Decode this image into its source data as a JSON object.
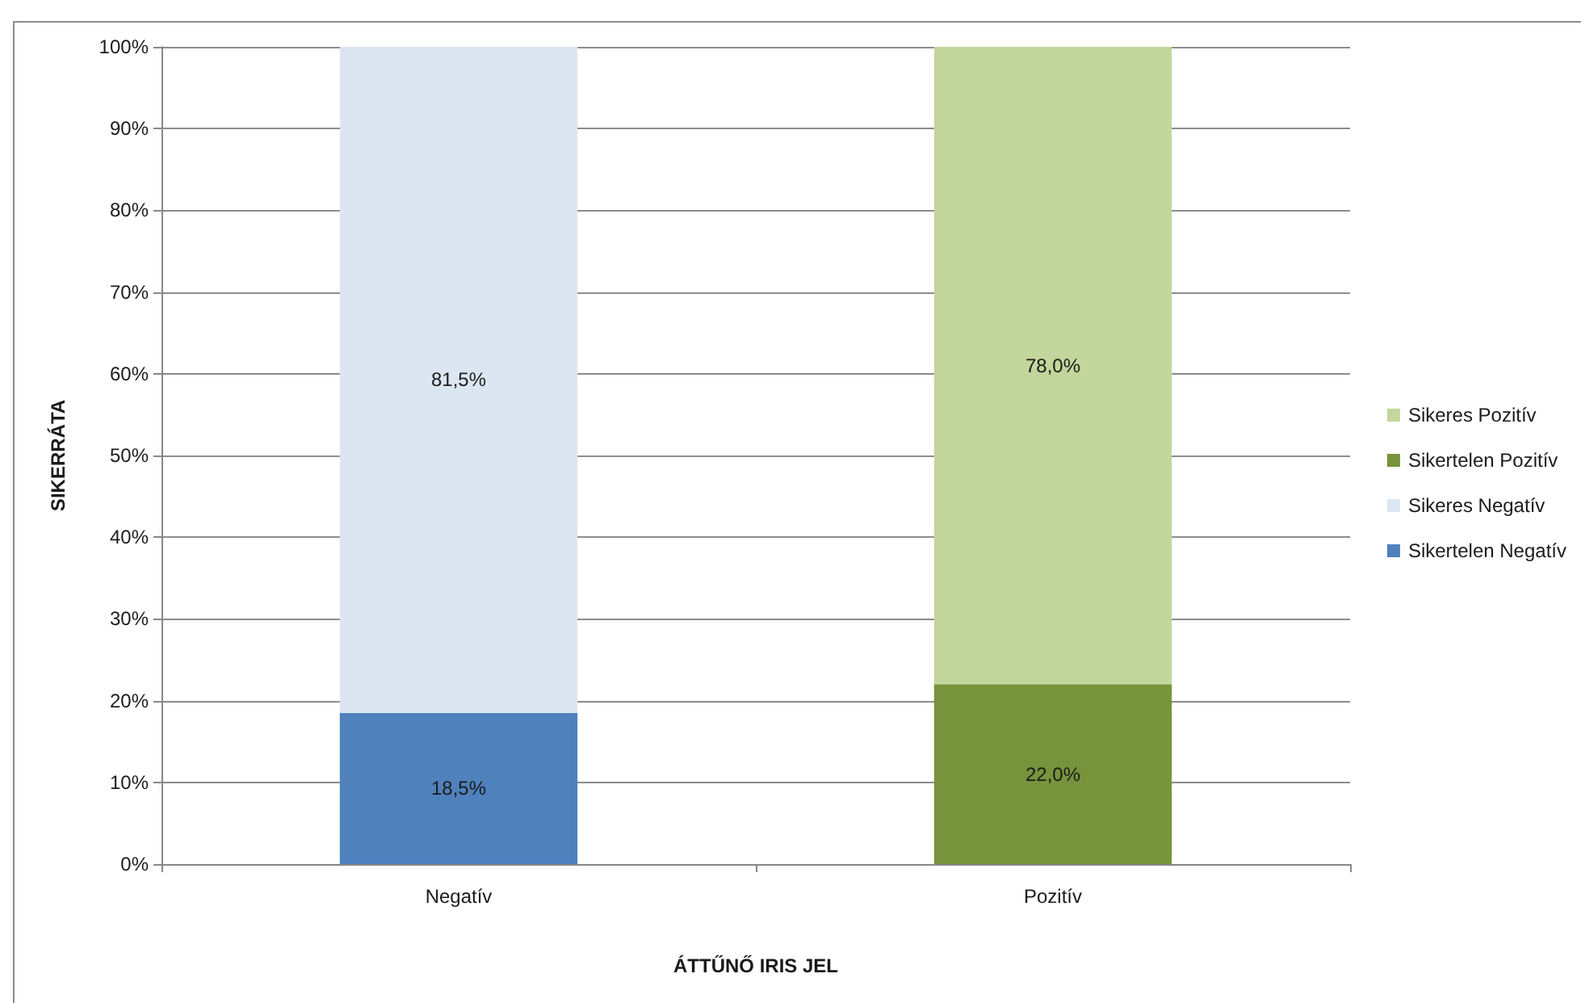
{
  "chart_data": {
    "type": "bar",
    "xlabel": "ÁTTŰNŐ IRIS JEL",
    "ylabel": "SIKERRÁTA",
    "categories": [
      "Negatív",
      "Pozitív"
    ],
    "stacked": true,
    "series": [
      {
        "name": "Sikertelen Negatív",
        "color": "#4f81bd",
        "values": [
          18.5,
          null
        ],
        "value_labels": [
          "18,5%",
          null
        ]
      },
      {
        "name": "Sikeres Negatív",
        "color": "#dce6f2",
        "values": [
          81.5,
          null
        ],
        "value_labels": [
          "81,5%",
          null
        ]
      },
      {
        "name": "Sikertelen Pozitív",
        "color": "#77933c",
        "values": [
          null,
          22.0
        ],
        "value_labels": [
          null,
          "22,0%"
        ]
      },
      {
        "name": "Sikeres Pozitív",
        "color": "#c3d69b",
        "values": [
          null,
          78.0
        ],
        "value_labels": [
          null,
          "78,0%"
        ]
      }
    ],
    "ylim": [
      0,
      100
    ],
    "yticks": [
      {
        "value": 0,
        "label": "0%"
      },
      {
        "value": 10,
        "label": "10%"
      },
      {
        "value": 20,
        "label": "20%"
      },
      {
        "value": 30,
        "label": "30%"
      },
      {
        "value": 40,
        "label": "40%"
      },
      {
        "value": 50,
        "label": "50%"
      },
      {
        "value": 60,
        "label": "60%"
      },
      {
        "value": 70,
        "label": "70%"
      },
      {
        "value": 80,
        "label": "80%"
      },
      {
        "value": 90,
        "label": "90%"
      },
      {
        "value": 100,
        "label": "100%"
      }
    ],
    "grid": "y",
    "legend": "right"
  }
}
